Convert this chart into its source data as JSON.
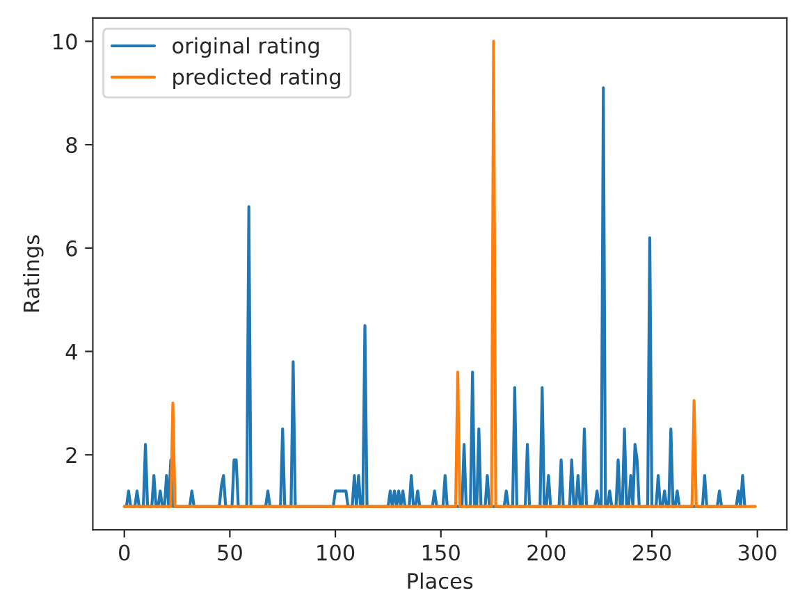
{
  "chart_data": {
    "type": "line",
    "xlabel": "Places",
    "ylabel": "Ratings",
    "xlim": [
      -14.95,
      313.95
    ],
    "ylim": [
      0.55,
      10.45
    ],
    "xticks": [
      0,
      50,
      100,
      150,
      200,
      250,
      300
    ],
    "yticks": [
      2,
      4,
      6,
      8,
      10
    ],
    "grid": false,
    "legend": "top left",
    "marker": "none",
    "line_style": "solid",
    "series": [
      {
        "name": "original rating",
        "color": "#1f77b4",
        "x": [
          0,
          1,
          2,
          3,
          5,
          6,
          7,
          9,
          10,
          11,
          13,
          14,
          15,
          16,
          17,
          18,
          19,
          20,
          21,
          22,
          23,
          31,
          32,
          33,
          45,
          46,
          47,
          48,
          51,
          52,
          53,
          54,
          58,
          59,
          60,
          67,
          68,
          69,
          74,
          75,
          76,
          79,
          80,
          81,
          99,
          100,
          105,
          106,
          108,
          109,
          110,
          111,
          112,
          113,
          114,
          115,
          125,
          126,
          127,
          128,
          129,
          130,
          131,
          132,
          133,
          135,
          136,
          137,
          138,
          139,
          140,
          146,
          147,
          148,
          151,
          152,
          153,
          157,
          158,
          159,
          160,
          161,
          162,
          164,
          165,
          166,
          167,
          168,
          169,
          171,
          172,
          173,
          180,
          181,
          182,
          184,
          185,
          186,
          190,
          191,
          192,
          197,
          198,
          199,
          200,
          201,
          202,
          206,
          207,
          208,
          211,
          212,
          213,
          214,
          215,
          216,
          217,
          218,
          219,
          223,
          224,
          225,
          226,
          227,
          228,
          229,
          230,
          231,
          233,
          234,
          235,
          236,
          237,
          238,
          239,
          240,
          241,
          242,
          243,
          244,
          248,
          249,
          250,
          252,
          253,
          254,
          255,
          256,
          257,
          258,
          259,
          260,
          261,
          262,
          263,
          274,
          275,
          276,
          281,
          282,
          283,
          290,
          291,
          292,
          293,
          294
        ],
        "values": [
          1,
          1,
          1.3,
          1,
          1,
          1.3,
          1,
          1,
          2.2,
          1,
          1,
          1.6,
          1,
          1,
          1.3,
          1,
          1,
          1.6,
          1,
          1.9,
          1,
          1,
          1.3,
          1,
          1,
          1.4,
          1.6,
          1,
          1,
          1.9,
          1.9,
          1,
          1,
          6.8,
          1,
          1,
          1.3,
          1,
          1,
          2.5,
          1,
          1,
          3.8,
          1,
          1,
          1.3,
          1.3,
          1,
          1,
          1.6,
          1,
          1.6,
          1,
          1,
          4.5,
          1,
          1,
          1.3,
          1,
          1.3,
          1,
          1.3,
          1,
          1.3,
          1,
          1,
          1.6,
          1,
          1,
          1.3,
          1,
          1,
          1.3,
          1,
          1,
          1.6,
          1,
          1,
          null,
          1,
          1,
          2.2,
          1,
          1,
          3.6,
          1,
          1,
          2.5,
          1,
          1,
          1.6,
          1,
          1,
          1.3,
          1,
          1,
          3.3,
          1,
          1,
          2.2,
          1,
          1,
          3.3,
          1,
          1,
          1.6,
          1,
          1,
          1.9,
          1,
          1,
          1.9,
          1,
          1,
          1.6,
          1,
          1,
          2.5,
          1,
          1,
          1.3,
          1,
          1,
          9.1,
          1,
          1,
          1.3,
          1,
          1,
          1.9,
          1,
          1,
          2.5,
          1,
          1,
          1.6,
          1,
          2.2,
          1.9,
          1,
          1,
          6.2,
          1,
          1,
          1.6,
          1,
          1,
          1.3,
          1,
          1,
          2.5,
          1,
          1,
          1.3,
          1,
          1,
          1.6,
          1,
          1,
          1.3,
          1,
          1,
          1.3,
          1,
          1.6,
          1
        ]
      },
      {
        "name": "predicted rating",
        "color": "#ff7f0e",
        "x": [
          0,
          22,
          23,
          24,
          157,
          158,
          159,
          174,
          175,
          176,
          269,
          270,
          271,
          299
        ],
        "values": [
          1,
          1,
          3.0,
          1,
          1,
          3.6,
          1,
          1,
          10,
          1,
          1,
          3.05,
          1,
          1
        ]
      }
    ]
  }
}
